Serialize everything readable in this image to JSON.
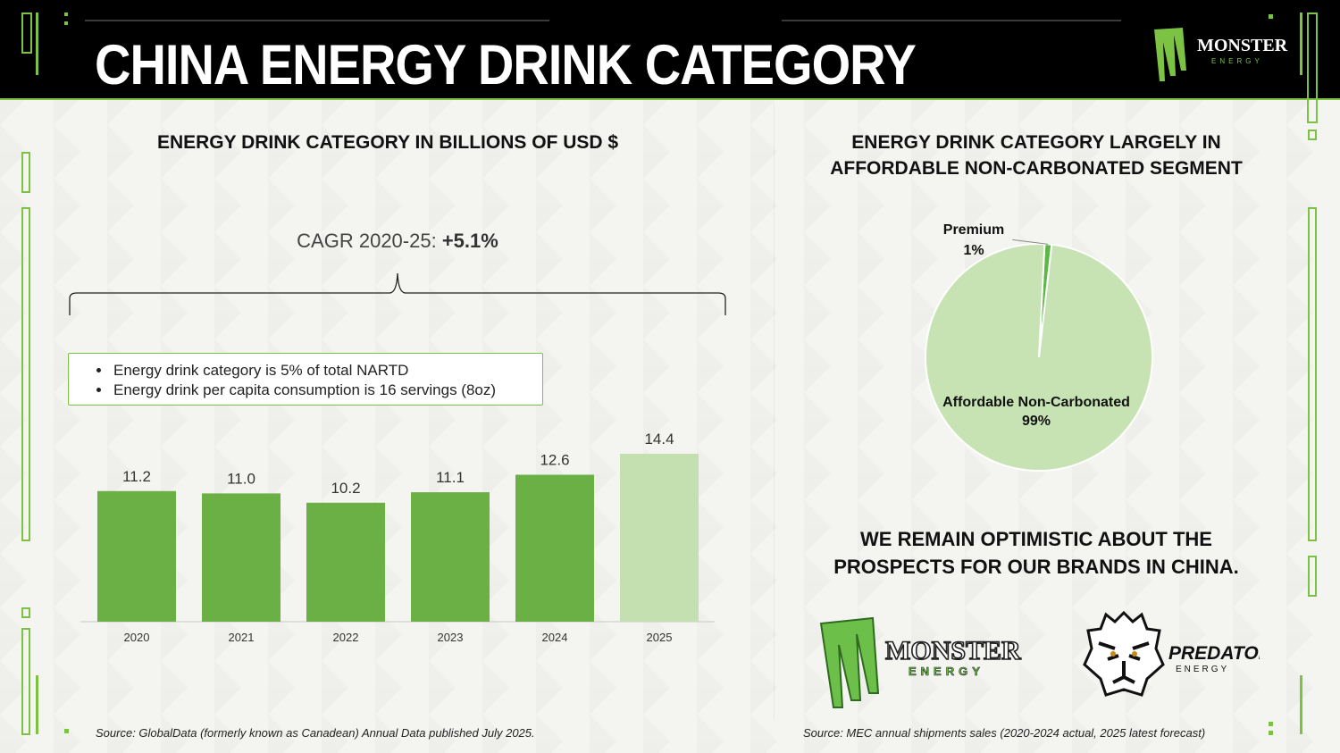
{
  "header": {
    "title": "CHINA ENERGY DRINK CATEGORY"
  },
  "brand": {
    "logo_text": "MONSTER",
    "logo_subtext": "ENERGY",
    "accent": "#7cc243",
    "dark_green": "#6ab045",
    "light_green": "#c4e0b1",
    "pie_green": "#c7e3b3"
  },
  "left": {
    "heading": "ENERGY DRINK CATEGORY IN BILLIONS OF USD $",
    "cagr_label": "CAGR 2020-25:",
    "cagr_value": "+5.1%",
    "notes": [
      "Energy drink category is 5% of total NARTD",
      "Energy drink per capita consumption is 16 servings (8oz)"
    ],
    "source": "Source: GlobalData (formerly known as Canadean) Annual Data published July 2025."
  },
  "right": {
    "heading_line1": "ENERGY DRINK CATEGORY LARGELY IN",
    "heading_line2": "AFFORDABLE NON-CARBONATED SEGMENT",
    "optimistic_line1": "WE REMAIN OPTIMISTIC ABOUT THE",
    "optimistic_line2": "PROSPECTS FOR OUR BRANDS IN CHINA.",
    "brand1_name": "MONSTER",
    "brand1_sub": "ENERGY",
    "brand2_name": "PREDATOR",
    "brand2_sub": "ENERGY",
    "source": "Source: MEC annual shipments sales (2020-2024 actual, 2025 latest forecast)"
  },
  "chart_data": [
    {
      "type": "bar",
      "title": "ENERGY DRINK CATEGORY IN BILLIONS OF USD $",
      "categories": [
        "2020",
        "2021",
        "2022",
        "2023",
        "2024",
        "2025"
      ],
      "values": [
        11.2,
        11.0,
        10.2,
        11.1,
        12.6,
        14.4
      ],
      "value_labels": [
        "11.2",
        "11.0",
        "10.2",
        "11.1",
        "12.6",
        "14.4"
      ],
      "highlight_last": true,
      "ylim": [
        0,
        14.4
      ],
      "xlabel": "",
      "ylabel": ""
    },
    {
      "type": "pie",
      "title": "ENERGY DRINK CATEGORY LARGELY IN AFFORDABLE NON-CARBONATED SEGMENT",
      "labels": [
        "Premium",
        "Affordable Non-Carbonated"
      ],
      "values": [
        1,
        99
      ],
      "value_labels": [
        "1%",
        "99%"
      ]
    }
  ]
}
